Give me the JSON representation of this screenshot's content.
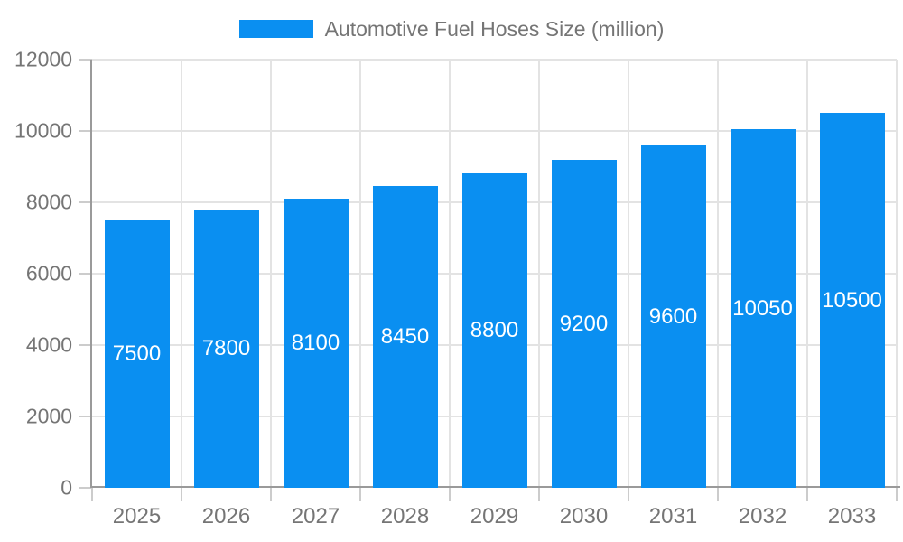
{
  "legend": {
    "label": "Automotive Fuel Hoses Size (million)"
  },
  "chart_data": {
    "type": "bar",
    "title": "Automotive Fuel Hoses Size (million)",
    "series_name": "Automotive Fuel Hoses Size (million)",
    "categories": [
      "2025",
      "2026",
      "2027",
      "2028",
      "2029",
      "2030",
      "2031",
      "2032",
      "2033"
    ],
    "values": [
      7500,
      7800,
      8100,
      8450,
      8800,
      9200,
      9600,
      10050,
      10500
    ],
    "bar_labels": [
      "7500",
      "7800",
      "8100",
      "8450",
      "8800",
      "9200",
      "9600",
      "10050",
      "10500"
    ],
    "xlabel": "",
    "ylabel": "",
    "ylim": [
      0,
      12000
    ],
    "yticks": [
      0,
      2000,
      4000,
      6000,
      8000,
      10000,
      12000
    ],
    "ytick_labels": [
      "0",
      "2000",
      "4000",
      "6000",
      "8000",
      "10000",
      "12000"
    ],
    "grid": true,
    "legend_position": "top"
  },
  "colors": {
    "bar": "#0a8ff1",
    "bar_label": "#ffffff",
    "grid": "#e3e3e3",
    "axis": "#9a9a9a",
    "tick": "#cccccc",
    "text": "#757575",
    "background": "#ffffff"
  }
}
